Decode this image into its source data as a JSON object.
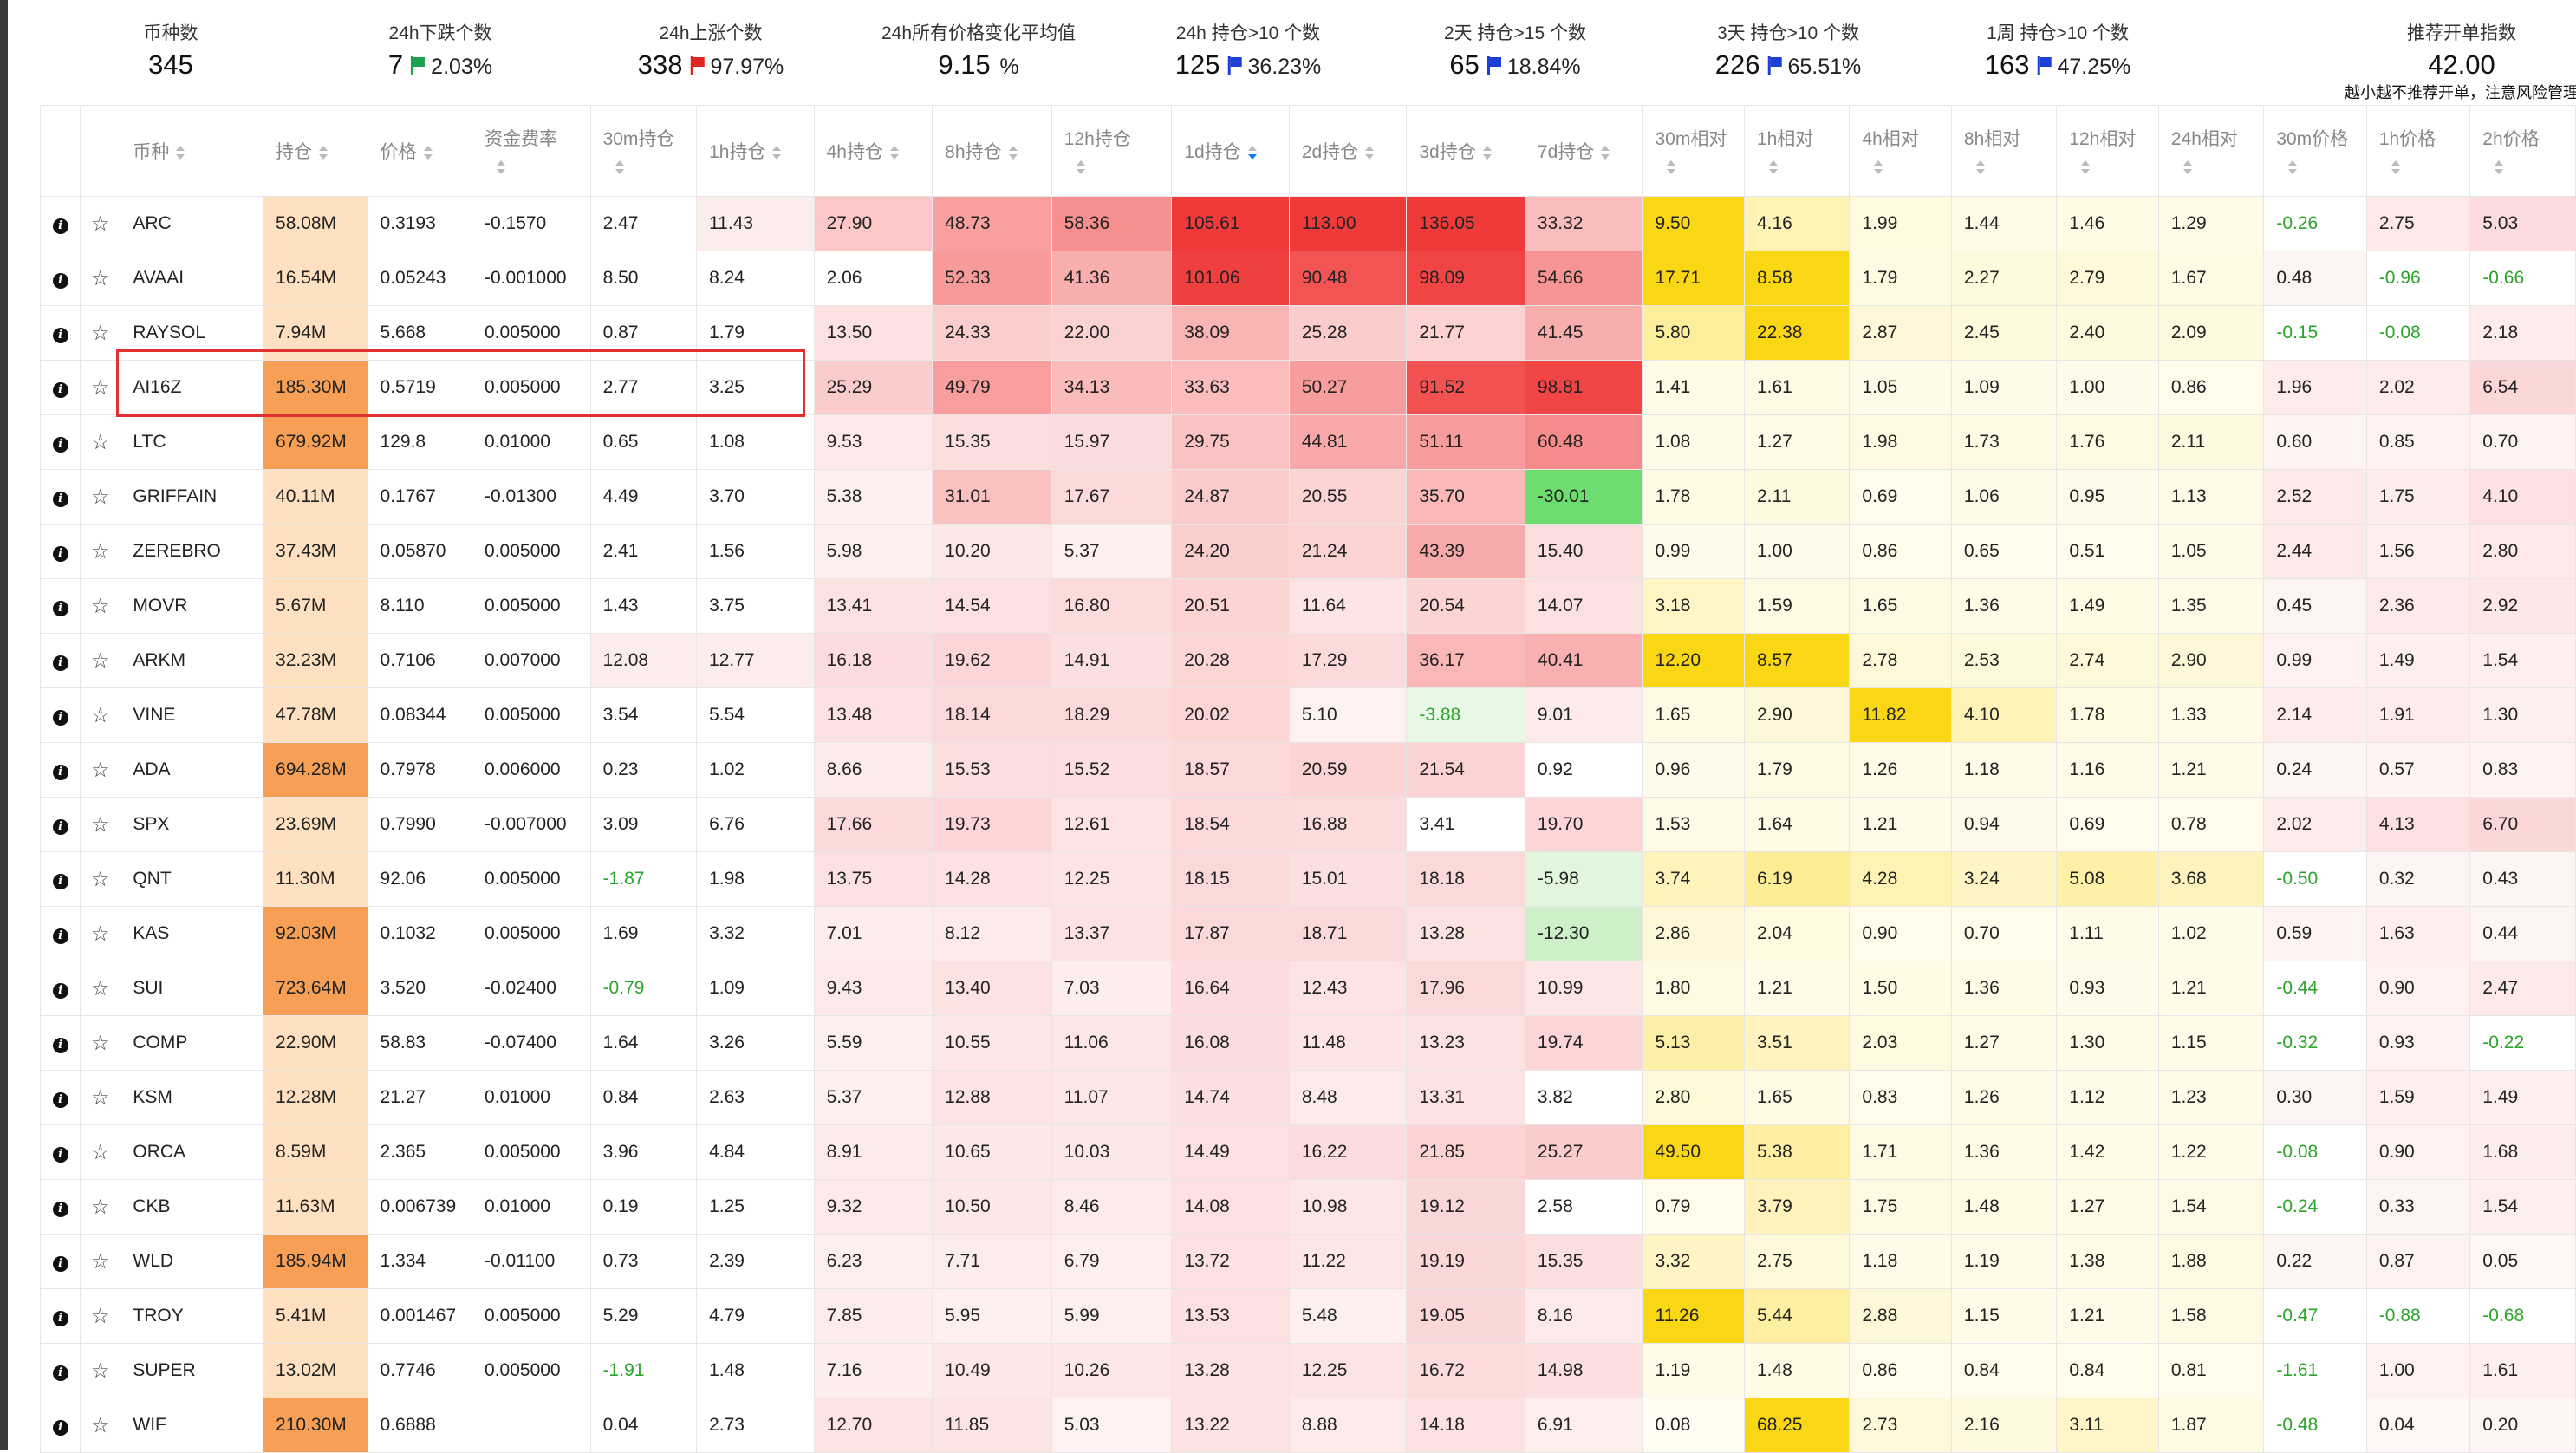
{
  "stats": [
    {
      "label": "币种数",
      "value": "345",
      "pct": "",
      "flag": ""
    },
    {
      "label": "24h下跌个数",
      "value": "7",
      "pct": "2.03%",
      "flag": "green"
    },
    {
      "label": "24h上涨个数",
      "value": "338",
      "pct": "97.97%",
      "flag": "red"
    },
    {
      "label": "24h所有价格变化平均值",
      "value": "9.15",
      "pct": "%",
      "flag": ""
    },
    {
      "label": "24h 持仓>10 个数",
      "value": "125",
      "pct": "36.23%",
      "flag": "blue"
    },
    {
      "label": "2天 持仓>15 个数",
      "value": "65",
      "pct": "18.84%",
      "flag": "blue"
    },
    {
      "label": "3天 持仓>10 个数",
      "value": "226",
      "pct": "65.51%",
      "flag": "blue"
    },
    {
      "label": "1周 持仓>10 个数",
      "value": "163",
      "pct": "47.25%",
      "flag": "blue"
    },
    {
      "label": "推荐开单指数",
      "value": "42.00",
      "pct": "",
      "flag": "",
      "note": "越小越不推荐开单，注意风险管理"
    }
  ],
  "columns": [
    {
      "label": "",
      "sort": false,
      "two_line": false
    },
    {
      "label": "",
      "sort": false,
      "two_line": false
    },
    {
      "label": "币种",
      "sort": true,
      "two_line": false
    },
    {
      "label": "持仓",
      "sort": true,
      "two_line": false
    },
    {
      "label": "价格",
      "sort": true,
      "two_line": false
    },
    {
      "label": "资金费率",
      "sort": true,
      "two_line": true
    },
    {
      "label": "30m持仓",
      "sort": true,
      "two_line": true
    },
    {
      "label": "1h持仓",
      "sort": true,
      "two_line": false
    },
    {
      "label": "4h持仓",
      "sort": true,
      "two_line": false
    },
    {
      "label": "8h持仓",
      "sort": true,
      "two_line": false
    },
    {
      "label": "12h持仓",
      "sort": true,
      "two_line": true
    },
    {
      "label": "1d持仓",
      "sort": true,
      "two_line": false,
      "active": true
    },
    {
      "label": "2d持仓",
      "sort": true,
      "two_line": false
    },
    {
      "label": "3d持仓",
      "sort": true,
      "two_line": false
    },
    {
      "label": "7d持仓",
      "sort": true,
      "two_line": false
    },
    {
      "label": "30m相对",
      "sort": true,
      "two_line": true
    },
    {
      "label": "1h相对",
      "sort": true,
      "two_line": true
    },
    {
      "label": "4h相对",
      "sort": true,
      "two_line": true
    },
    {
      "label": "8h相对",
      "sort": true,
      "two_line": true
    },
    {
      "label": "12h相对",
      "sort": true,
      "two_line": true
    },
    {
      "label": "24h相对",
      "sort": true,
      "two_line": true
    },
    {
      "label": "30m价格",
      "sort": true,
      "two_line": true
    },
    {
      "label": "1h价格",
      "sort": true,
      "two_line": true
    },
    {
      "label": "2h价格",
      "sort": true,
      "two_line": true
    }
  ],
  "rows": [
    {
      "sym": "ARC",
      "hold": "58.08M",
      "price": "0.3193",
      "fund": "-0.1570",
      "v": [
        "2.47",
        "11.43",
        "27.90",
        "48.73",
        "58.36",
        "105.61",
        "113.00",
        "136.05",
        "33.32",
        "9.50",
        "4.16",
        "1.99",
        "1.44",
        "1.46",
        "1.29",
        "-0.26",
        "2.75",
        "5.03"
      ]
    },
    {
      "sym": "AVAAI",
      "hold": "16.54M",
      "price": "0.05243",
      "fund": "-0.001000",
      "v": [
        "8.50",
        "8.24",
        "2.06",
        "52.33",
        "41.36",
        "101.06",
        "90.48",
        "98.09",
        "54.66",
        "17.71",
        "8.58",
        "1.79",
        "2.27",
        "2.79",
        "1.67",
        "0.48",
        "-0.96",
        "-0.66"
      ]
    },
    {
      "sym": "RAYSOL",
      "hold": "7.94M",
      "price": "5.668",
      "fund": "0.005000",
      "v": [
        "0.87",
        "1.79",
        "13.50",
        "24.33",
        "22.00",
        "38.09",
        "25.28",
        "21.77",
        "41.45",
        "5.80",
        "22.38",
        "2.87",
        "2.45",
        "2.40",
        "2.09",
        "-0.15",
        "-0.08",
        "2.18"
      ]
    },
    {
      "sym": "AI16Z",
      "hold": "185.30M",
      "price": "0.5719",
      "fund": "0.005000",
      "v": [
        "2.77",
        "3.25",
        "25.29",
        "49.79",
        "34.13",
        "33.63",
        "50.27",
        "91.52",
        "98.81",
        "1.41",
        "1.61",
        "1.05",
        "1.09",
        "1.00",
        "0.86",
        "1.96",
        "2.02",
        "6.54"
      ]
    },
    {
      "sym": "LTC",
      "hold": "679.92M",
      "price": "129.8",
      "fund": "0.01000",
      "v": [
        "0.65",
        "1.08",
        "9.53",
        "15.35",
        "15.97",
        "29.75",
        "44.81",
        "51.11",
        "60.48",
        "1.08",
        "1.27",
        "1.98",
        "1.73",
        "1.76",
        "2.11",
        "0.60",
        "0.85",
        "0.70"
      ]
    },
    {
      "sym": "GRIFFAIN",
      "hold": "40.11M",
      "price": "0.1767",
      "fund": "-0.01300",
      "v": [
        "4.49",
        "3.70",
        "5.38",
        "31.01",
        "17.67",
        "24.87",
        "20.55",
        "35.70",
        "-30.01",
        "1.78",
        "2.11",
        "0.69",
        "1.06",
        "0.95",
        "1.13",
        "2.52",
        "1.75",
        "4.10"
      ]
    },
    {
      "sym": "ZEREBRO",
      "hold": "37.43M",
      "price": "0.05870",
      "fund": "0.005000",
      "v": [
        "2.41",
        "1.56",
        "5.98",
        "10.20",
        "5.37",
        "24.20",
        "21.24",
        "43.39",
        "15.40",
        "0.99",
        "1.00",
        "0.86",
        "0.65",
        "0.51",
        "1.05",
        "2.44",
        "1.56",
        "2.80"
      ]
    },
    {
      "sym": "MOVR",
      "hold": "5.67M",
      "price": "8.110",
      "fund": "0.005000",
      "v": [
        "1.43",
        "3.75",
        "13.41",
        "14.54",
        "16.80",
        "20.51",
        "11.64",
        "20.54",
        "14.07",
        "3.18",
        "1.59",
        "1.65",
        "1.36",
        "1.49",
        "1.35",
        "0.45",
        "2.36",
        "2.92"
      ]
    },
    {
      "sym": "ARKM",
      "hold": "32.23M",
      "price": "0.7106",
      "fund": "0.007000",
      "v": [
        "12.08",
        "12.77",
        "16.18",
        "19.62",
        "14.91",
        "20.28",
        "17.29",
        "36.17",
        "40.41",
        "12.20",
        "8.57",
        "2.78",
        "2.53",
        "2.74",
        "2.90",
        "0.99",
        "1.49",
        "1.54"
      ]
    },
    {
      "sym": "VINE",
      "hold": "47.78M",
      "price": "0.08344",
      "fund": "0.005000",
      "v": [
        "3.54",
        "5.54",
        "13.48",
        "18.14",
        "18.29",
        "20.02",
        "5.10",
        "-3.88",
        "9.01",
        "1.65",
        "2.90",
        "11.82",
        "4.10",
        "1.78",
        "1.33",
        "2.14",
        "1.91",
        "1.30"
      ]
    },
    {
      "sym": "ADA",
      "hold": "694.28M",
      "price": "0.7978",
      "fund": "0.006000",
      "v": [
        "0.23",
        "1.02",
        "8.66",
        "15.53",
        "15.52",
        "18.57",
        "20.59",
        "21.54",
        "0.92",
        "0.96",
        "1.79",
        "1.26",
        "1.18",
        "1.16",
        "1.21",
        "0.24",
        "0.57",
        "0.83"
      ]
    },
    {
      "sym": "SPX",
      "hold": "23.69M",
      "price": "0.7990",
      "fund": "-0.007000",
      "v": [
        "3.09",
        "6.76",
        "17.66",
        "19.73",
        "12.61",
        "18.54",
        "16.88",
        "3.41",
        "19.70",
        "1.53",
        "1.64",
        "1.21",
        "0.94",
        "0.69",
        "0.78",
        "2.02",
        "4.13",
        "6.70"
      ]
    },
    {
      "sym": "QNT",
      "hold": "11.30M",
      "price": "92.06",
      "fund": "0.005000",
      "v": [
        "-1.87",
        "1.98",
        "13.75",
        "14.28",
        "12.25",
        "18.15",
        "15.01",
        "18.18",
        "-5.98",
        "3.74",
        "6.19",
        "4.28",
        "3.24",
        "5.08",
        "3.68",
        "-0.50",
        "0.32",
        "0.43"
      ]
    },
    {
      "sym": "KAS",
      "hold": "92.03M",
      "price": "0.1032",
      "fund": "0.005000",
      "v": [
        "1.69",
        "3.32",
        "7.01",
        "8.12",
        "13.37",
        "17.87",
        "18.71",
        "13.28",
        "-12.30",
        "2.86",
        "2.04",
        "0.90",
        "0.70",
        "1.11",
        "1.02",
        "0.59",
        "1.63",
        "0.44"
      ]
    },
    {
      "sym": "SUI",
      "hold": "723.64M",
      "price": "3.520",
      "fund": "-0.02400",
      "v": [
        "-0.79",
        "1.09",
        "9.43",
        "13.40",
        "7.03",
        "16.64",
        "12.43",
        "17.96",
        "10.99",
        "1.80",
        "1.21",
        "1.50",
        "1.36",
        "0.93",
        "1.21",
        "-0.44",
        "0.90",
        "2.47"
      ]
    },
    {
      "sym": "COMP",
      "hold": "22.90M",
      "price": "58.83",
      "fund": "-0.07400",
      "v": [
        "1.64",
        "3.26",
        "5.59",
        "10.55",
        "11.06",
        "16.08",
        "11.48",
        "13.23",
        "19.74",
        "5.13",
        "3.51",
        "2.03",
        "1.27",
        "1.30",
        "1.15",
        "-0.32",
        "0.93",
        "-0.22"
      ]
    },
    {
      "sym": "KSM",
      "hold": "12.28M",
      "price": "21.27",
      "fund": "0.01000",
      "v": [
        "0.84",
        "2.63",
        "5.37",
        "12.88",
        "11.07",
        "14.74",
        "8.48",
        "13.31",
        "3.82",
        "2.80",
        "1.65",
        "0.83",
        "1.26",
        "1.12",
        "1.23",
        "0.30",
        "1.59",
        "1.49"
      ]
    },
    {
      "sym": "ORCA",
      "hold": "8.59M",
      "price": "2.365",
      "fund": "0.005000",
      "v": [
        "3.96",
        "4.84",
        "8.91",
        "10.65",
        "10.03",
        "14.49",
        "16.22",
        "21.85",
        "25.27",
        "49.50",
        "5.38",
        "1.71",
        "1.36",
        "1.42",
        "1.22",
        "-0.08",
        "0.90",
        "1.68"
      ]
    },
    {
      "sym": "CKB",
      "hold": "11.63M",
      "price": "0.006739",
      "fund": "0.01000",
      "v": [
        "0.19",
        "1.25",
        "9.32",
        "10.50",
        "8.46",
        "14.08",
        "10.98",
        "19.12",
        "2.58",
        "0.79",
        "3.79",
        "1.75",
        "1.48",
        "1.27",
        "1.54",
        "-0.24",
        "0.33",
        "1.54"
      ]
    },
    {
      "sym": "WLD",
      "hold": "185.94M",
      "price": "1.334",
      "fund": "-0.01100",
      "v": [
        "0.73",
        "2.39",
        "6.23",
        "7.71",
        "6.79",
        "13.72",
        "11.22",
        "19.19",
        "15.35",
        "3.32",
        "2.75",
        "1.18",
        "1.19",
        "1.38",
        "1.88",
        "0.22",
        "0.87",
        "0.05"
      ]
    },
    {
      "sym": "TROY",
      "hold": "5.41M",
      "price": "0.001467",
      "fund": "0.005000",
      "v": [
        "5.29",
        "4.79",
        "7.85",
        "5.95",
        "5.99",
        "13.53",
        "5.48",
        "19.05",
        "8.16",
        "11.26",
        "5.44",
        "2.88",
        "1.15",
        "1.21",
        "1.58",
        "-0.47",
        "-0.88",
        "-0.68"
      ]
    },
    {
      "sym": "SUPER",
      "hold": "13.02M",
      "price": "0.7746",
      "fund": "0.005000",
      "v": [
        "-1.91",
        "1.48",
        "7.16",
        "10.49",
        "10.26",
        "13.28",
        "12.25",
        "16.72",
        "14.98",
        "1.19",
        "1.48",
        "0.86",
        "0.84",
        "0.84",
        "0.81",
        "-1.61",
        "1.00",
        "1.61"
      ]
    },
    {
      "sym": "WIF",
      "hold": "210.30M",
      "price": "0.6888",
      "fund": "",
      "v": [
        "0.04",
        "2.73",
        "12.70",
        "11.85",
        "5.03",
        "13.22",
        "8.88",
        "14.18",
        "6.91",
        "0.08",
        "68.25",
        "2.73",
        "2.16",
        "3.11",
        "1.87",
        "-0.48",
        "0.04",
        "0.20"
      ]
    }
  ],
  "row_icons": {
    "info": "info-icon",
    "star": "star-icon"
  },
  "highlighted_row": "AI16Z"
}
